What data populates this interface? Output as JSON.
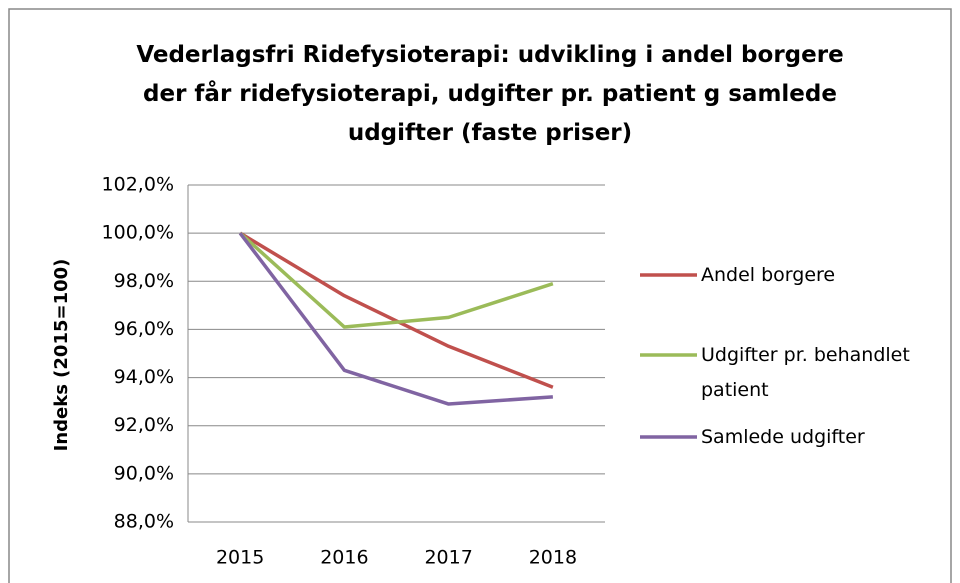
{
  "chart_data": {
    "type": "line",
    "title": "Vederlagsfri Ridefysioterapi: udvikling i andel borgere der får ridefysioterapi, udgifter pr. patient g samlede udgifter (faste priser)",
    "y_label": "Indeks (2015=100)",
    "categories": [
      "2015",
      "2016",
      "2017",
      "2018"
    ],
    "series": [
      {
        "name": "Andel borgere",
        "color": "#c0504d",
        "values": [
          100.0,
          97.4,
          95.3,
          93.6
        ]
      },
      {
        "name": "Udgifter pr. behandlet patient",
        "color": "#9bbb59",
        "values": [
          100.0,
          96.1,
          96.5,
          97.9
        ]
      },
      {
        "name": "Samlede udgifter",
        "color": "#8064a2",
        "values": [
          100.0,
          94.3,
          92.9,
          93.2
        ]
      }
    ],
    "ylim": [
      88,
      102
    ],
    "yticks": [
      {
        "value": 88,
        "label": "88,0%"
      },
      {
        "value": 90,
        "label": "90,0%"
      },
      {
        "value": 92,
        "label": "92,0%"
      },
      {
        "value": 94,
        "label": "94,0%"
      },
      {
        "value": 96,
        "label": "96,0%"
      },
      {
        "value": 98,
        "label": "98,0%"
      },
      {
        "value": 100,
        "label": "100,0%"
      },
      {
        "value": 102,
        "label": "102,0%"
      }
    ],
    "grid": true,
    "legend": "right"
  }
}
